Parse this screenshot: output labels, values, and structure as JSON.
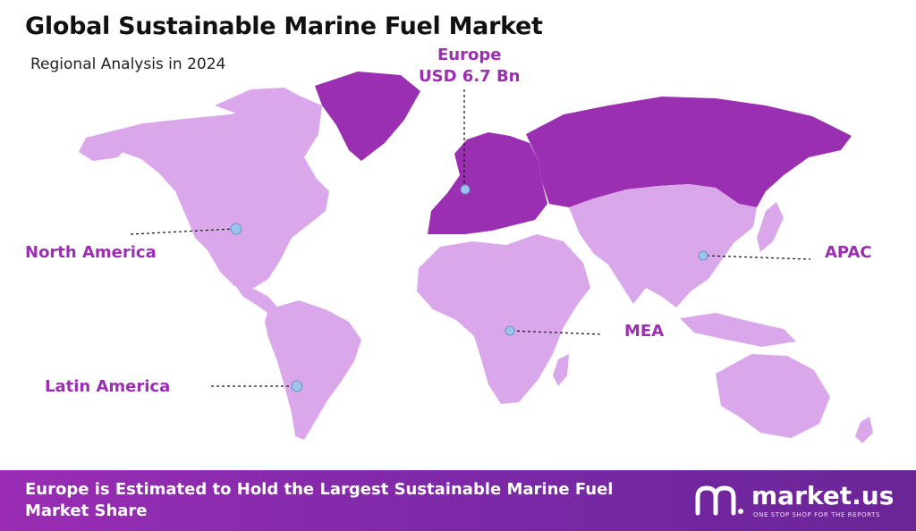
{
  "header": {
    "title": "Global Sustainable Marine Fuel Market",
    "subtitle": "Regional Analysis in 2024"
  },
  "map": {
    "colors": {
      "highlight_region": "#9b2fb1",
      "other_regions": "#dba7eb",
      "marker": "#9cc4ec",
      "label": "#9b2fb1"
    },
    "regions": [
      {
        "id": "europe",
        "name": "Europe",
        "value_label": "USD 6.7 Bn",
        "highlighted": true
      },
      {
        "id": "north-america",
        "name": "North America"
      },
      {
        "id": "latin-america",
        "name": "Latin America"
      },
      {
        "id": "mea",
        "name": "MEA"
      },
      {
        "id": "apac",
        "name": "APAC"
      }
    ]
  },
  "footer": {
    "headline": "Europe is Estimated to Hold the Largest Sustainable Marine Fuel Market Share",
    "brand_name": "market.us",
    "brand_tagline": "ONE STOP SHOP FOR THE REPORTS"
  }
}
